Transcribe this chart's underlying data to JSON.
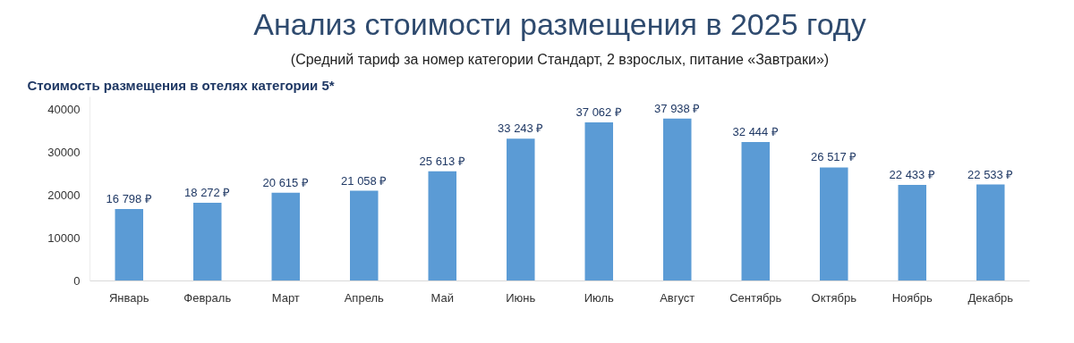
{
  "chart_data": {
    "type": "bar",
    "title": "Анализ стоимости размещения в 2025 году",
    "subtitle": "(Средний тариф за номер категории Стандарт, 2 взрослых, питание «Завтраки»)",
    "annotations": [
      "Стоимость размещения в отелях категории 5*"
    ],
    "categories": [
      "Январь",
      "Февраль",
      "Март",
      "Апрель",
      "Май",
      "Июнь",
      "Июль",
      "Август",
      "Сентябрь",
      "Октябрь",
      "Ноябрь",
      "Декабрь"
    ],
    "values": [
      16798,
      18272,
      20615,
      21058,
      25613,
      33243,
      37062,
      37938,
      32444,
      26517,
      22433,
      22533
    ],
    "value_labels": [
      "16 798 ₽",
      "18 272 ₽",
      "20 615 ₽",
      "21 058 ₽",
      "25 613 ₽",
      "33 243 ₽",
      "37 062 ₽",
      "37 938 ₽",
      "32 444 ₽",
      "26 517 ₽",
      "22 433 ₽",
      "22 533 ₽"
    ],
    "color": "#5b9bd5",
    "ylim": [
      0,
      43000
    ],
    "yticks": [
      0,
      10000,
      20000,
      30000,
      40000
    ],
    "grid": false
  }
}
